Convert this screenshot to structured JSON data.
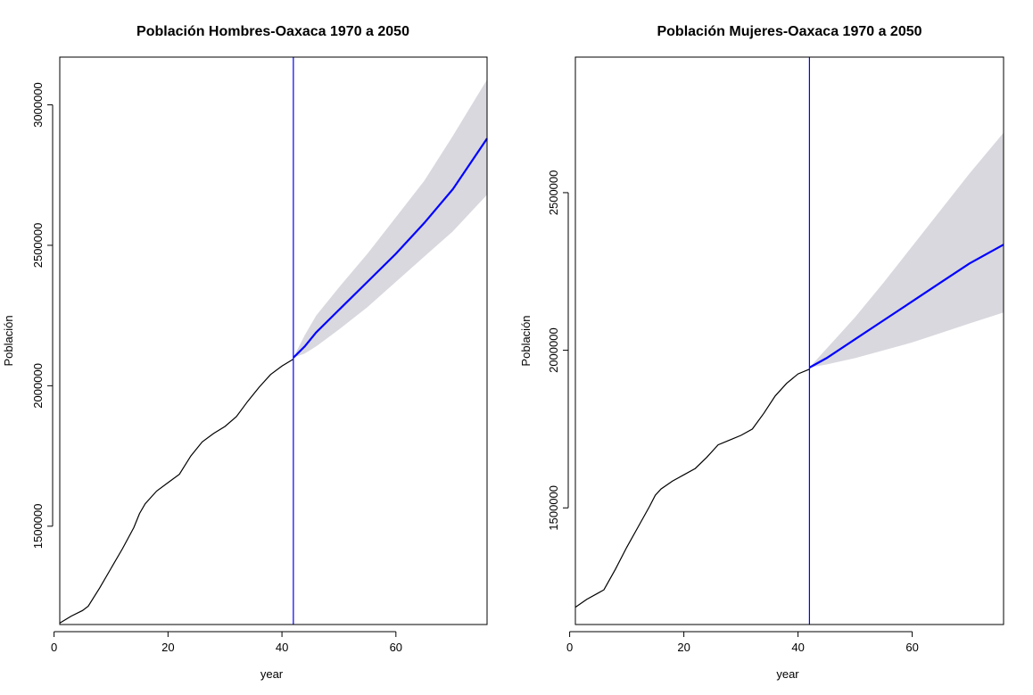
{
  "chart_data": [
    {
      "type": "line",
      "title": "Población Hombres-Oaxaca 1970 a 2050",
      "xlabel": "year",
      "ylabel": "Población",
      "xlim": [
        1,
        76
      ],
      "ylim": [
        1150000,
        3170000
      ],
      "xticks": [
        0,
        20,
        40,
        60
      ],
      "yticks": [
        1500000,
        2000000,
        2500000,
        3000000
      ],
      "forecast_start": 42,
      "colors": {
        "observed": "#000000",
        "forecast": "#0000ff",
        "interval": "#d8d8de",
        "marker": "#0000ff"
      },
      "series": [
        {
          "values": [
            [
              1,
              1155000
            ],
            [
              3,
              1180000
            ],
            [
              5,
              1200000
            ],
            [
              6,
              1215000
            ],
            [
              8,
              1280000
            ],
            [
              10,
              1350000
            ],
            [
              12,
              1420000
            ],
            [
              14,
              1495000
            ],
            [
              15,
              1545000
            ],
            [
              16,
              1580000
            ],
            [
              18,
              1625000
            ],
            [
              20,
              1655000
            ],
            [
              22,
              1685000
            ],
            [
              24,
              1750000
            ],
            [
              26,
              1800000
            ],
            [
              28,
              1830000
            ],
            [
              30,
              1855000
            ],
            [
              32,
              1890000
            ],
            [
              34,
              1945000
            ],
            [
              36,
              1995000
            ],
            [
              38,
              2040000
            ],
            [
              40,
              2070000
            ],
            [
              42,
              2095000
            ]
          ]
        },
        {
          "values": [
            [
              42,
              2100000
            ],
            [
              44,
              2140000
            ],
            [
              46,
              2190000
            ],
            [
              50,
              2270000
            ],
            [
              55,
              2370000
            ],
            [
              60,
              2470000
            ],
            [
              65,
              2580000
            ],
            [
              70,
              2700000
            ],
            [
              76,
              2880000
            ]
          ]
        }
      ],
      "interval": {
        "upper": [
          [
            42,
            2100000
          ],
          [
            44,
            2180000
          ],
          [
            46,
            2250000
          ],
          [
            50,
            2350000
          ],
          [
            55,
            2470000
          ],
          [
            60,
            2600000
          ],
          [
            65,
            2730000
          ],
          [
            70,
            2890000
          ],
          [
            76,
            3090000
          ]
        ],
        "lower": [
          [
            42,
            2100000
          ],
          [
            44,
            2115000
          ],
          [
            46,
            2140000
          ],
          [
            50,
            2200000
          ],
          [
            55,
            2280000
          ],
          [
            60,
            2370000
          ],
          [
            65,
            2460000
          ],
          [
            70,
            2550000
          ],
          [
            76,
            2680000
          ]
        ]
      }
    },
    {
      "type": "line",
      "title": "Población Mujeres-Oaxaca 1970 a 2050",
      "xlabel": "year",
      "ylabel": "Población",
      "xlim": [
        1,
        76
      ],
      "ylim": [
        1130000,
        2930000
      ],
      "xticks": [
        0,
        20,
        40,
        60
      ],
      "yticks": [
        1500000,
        2000000,
        2500000
      ],
      "forecast_start": 42,
      "colors": {
        "observed": "#000000",
        "forecast": "#0000ff",
        "interval": "#d8d8de",
        "marker": "#0000ff"
      },
      "series": [
        {
          "values": [
            [
              1,
              1185000
            ],
            [
              3,
              1210000
            ],
            [
              5,
              1230000
            ],
            [
              6,
              1240000
            ],
            [
              8,
              1305000
            ],
            [
              10,
              1375000
            ],
            [
              12,
              1440000
            ],
            [
              14,
              1505000
            ],
            [
              15,
              1540000
            ],
            [
              16,
              1560000
            ],
            [
              18,
              1585000
            ],
            [
              20,
              1605000
            ],
            [
              22,
              1625000
            ],
            [
              24,
              1660000
            ],
            [
              26,
              1700000
            ],
            [
              28,
              1715000
            ],
            [
              30,
              1730000
            ],
            [
              32,
              1750000
            ],
            [
              34,
              1800000
            ],
            [
              36,
              1855000
            ],
            [
              38,
              1895000
            ],
            [
              40,
              1925000
            ],
            [
              42,
              1940000
            ]
          ]
        },
        {
          "values": [
            [
              42,
              1945000
            ],
            [
              45,
              1975000
            ],
            [
              50,
              2035000
            ],
            [
              55,
              2095000
            ],
            [
              60,
              2155000
            ],
            [
              65,
              2215000
            ],
            [
              70,
              2275000
            ],
            [
              76,
              2335000
            ]
          ]
        }
      ],
      "interval": {
        "upper": [
          [
            42,
            1945000
          ],
          [
            45,
            2005000
          ],
          [
            50,
            2105000
          ],
          [
            55,
            2215000
          ],
          [
            60,
            2330000
          ],
          [
            65,
            2445000
          ],
          [
            70,
            2560000
          ],
          [
            76,
            2690000
          ]
        ],
        "lower": [
          [
            42,
            1945000
          ],
          [
            45,
            1955000
          ],
          [
            50,
            1975000
          ],
          [
            55,
            2000000
          ],
          [
            60,
            2025000
          ],
          [
            65,
            2055000
          ],
          [
            70,
            2085000
          ],
          [
            76,
            2120000
          ]
        ]
      }
    }
  ]
}
